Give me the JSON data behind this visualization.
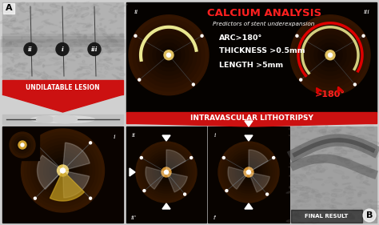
{
  "figure_bg": "#d8d8d8",
  "panel_A_label": "A",
  "panel_B_label": "B",
  "red_color": "#cc1111",
  "dark_red": "#aa0000",
  "white_color": "#ffffff",
  "black_color": "#000000",
  "calcium_title": "CALCIUM ANALYSIS",
  "calcium_title_color": "#ff2020",
  "subtitle": "Predictors of stent underexpansion",
  "subtitle_color": "#ffffff",
  "criteria": [
    "ARC>180°",
    "THICKNESS >0.5mm",
    "LENGTH >5mm"
  ],
  "criteria_color": "#ffffff",
  "undilatable_label": "UNDILATABLE LESION",
  "lithotripsy_label": "INTRAVASCULAR LITHOTRIPSY",
  "final_result_label": "FINAL RESULT",
  "arc_label": ">180°",
  "arc_label_color": "#ff2020",
  "label_ii_top": "ii",
  "label_iii_top": "iii",
  "label_i_bottom": "i",
  "label_ii_prime": "ii'",
  "label_i_prime": "i'",
  "oct_bg": "#0a0400",
  "overall_bg": "#d0d0d0",
  "angio_bg": "#a8a8a8",
  "angio_bg2": "#888888"
}
